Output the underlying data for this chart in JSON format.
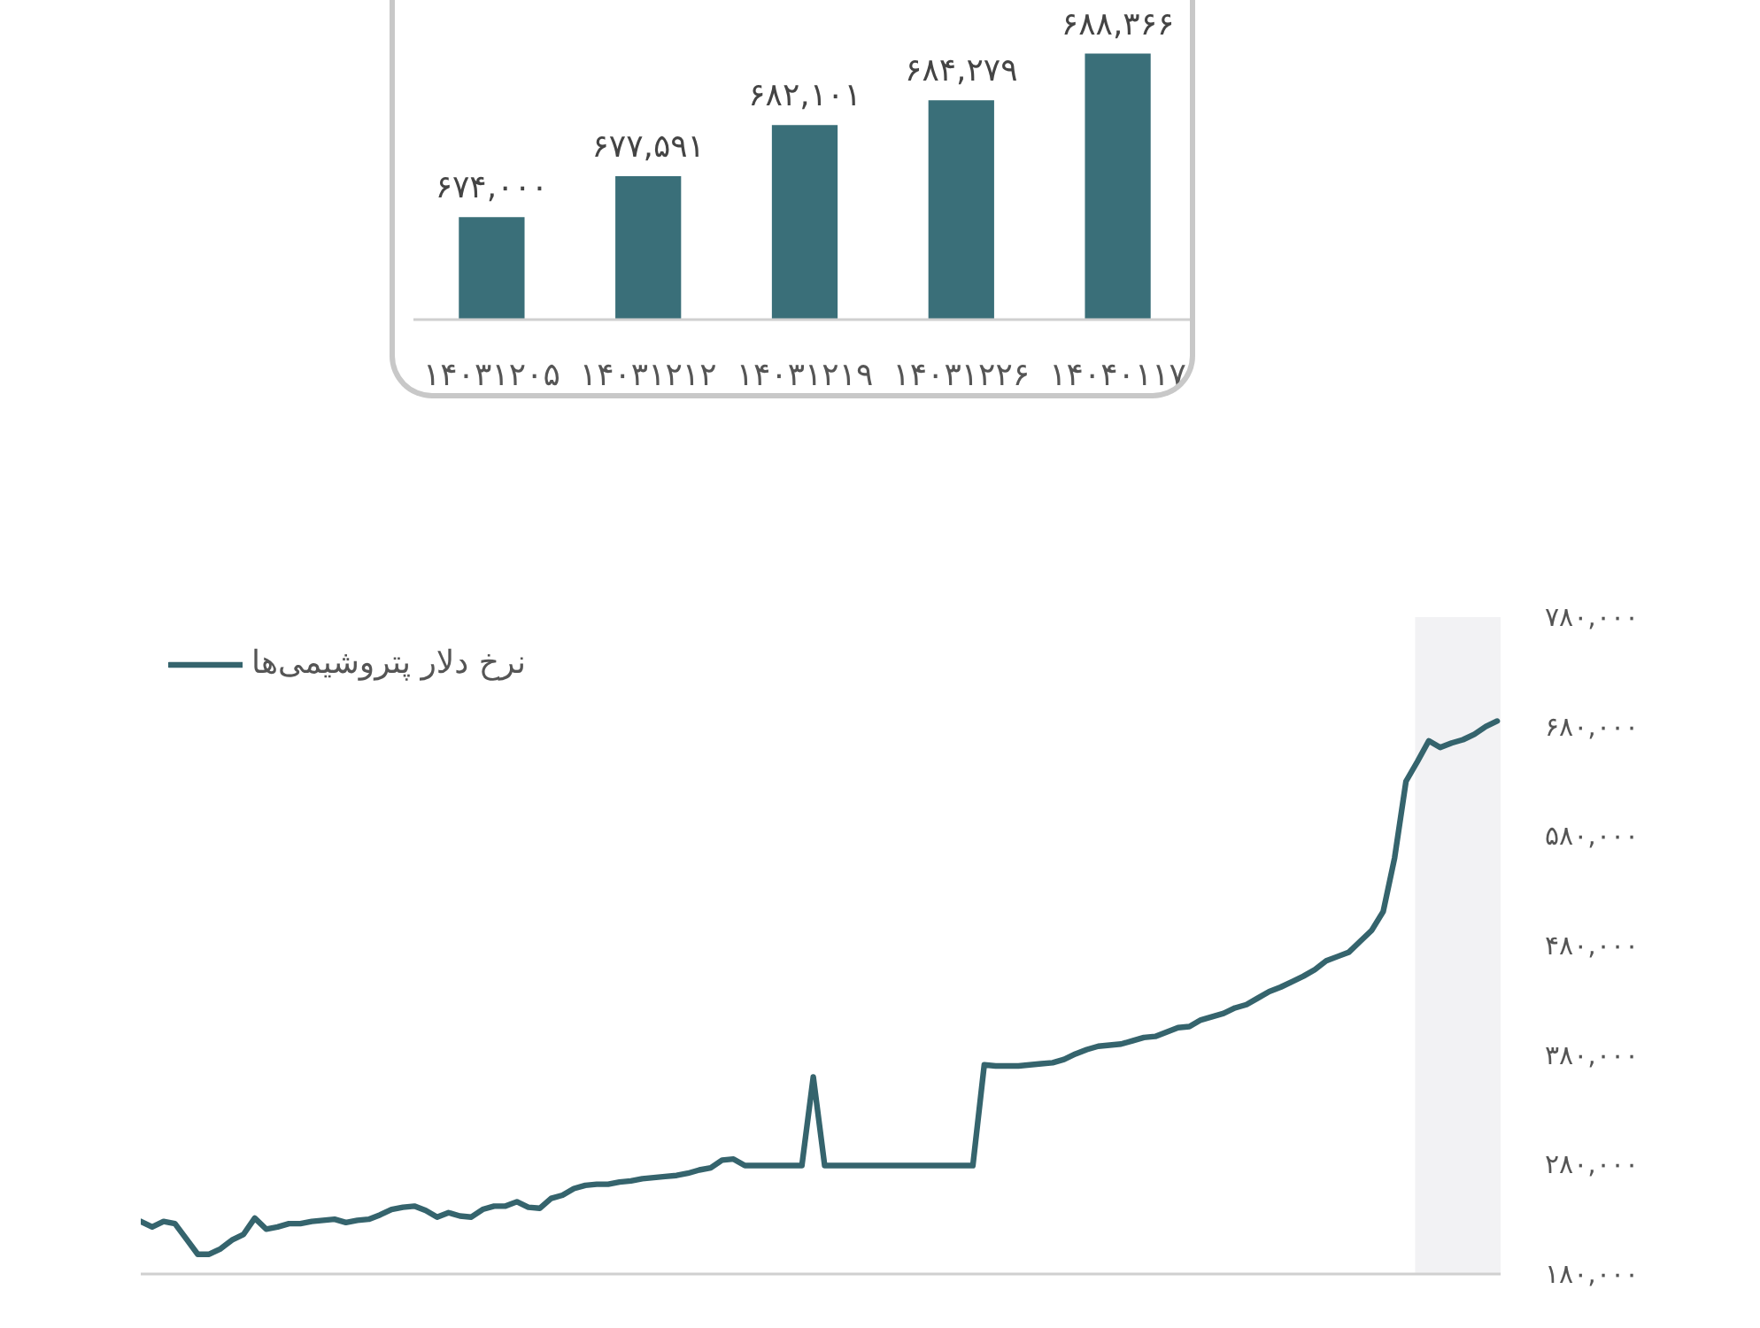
{
  "chart_data": [
    {
      "type": "bar",
      "categories": [
        "۱۴۰۳۱۲۰۵",
        "۱۴۰۳۱۲۱۲",
        "۱۴۰۳۱۲۱۹",
        "۱۴۰۳۱۲۲۶",
        "۱۴۰۴۰۱۱۷"
      ],
      "values": [
        674000,
        677591,
        682101,
        684279,
        688366
      ],
      "value_labels": [
        "۶۷۴,۰۰۰",
        "۶۷۷,۵۹۱",
        "۶۸۲,۱۰۱",
        "۶۸۴,۲۷۹",
        "۶۸۸,۳۶۶"
      ],
      "color": "#3a6f79",
      "ylim": [
        665000,
        693000
      ],
      "tick_labels": "x"
    },
    {
      "type": "line",
      "categories": [
        null,
        null,
        null,
        null,
        null,
        null,
        null,
        null,
        null,
        null,
        null,
        null,
        null,
        null,
        null,
        null,
        null,
        null,
        null,
        null,
        null,
        null,
        null,
        null,
        null,
        null,
        null,
        null,
        null,
        null,
        null,
        null,
        null,
        null,
        null,
        null,
        null,
        null,
        null,
        null,
        null,
        null,
        null,
        null,
        null,
        null,
        null,
        null,
        null,
        null,
        null,
        null,
        null,
        null,
        null,
        null,
        null,
        null,
        null,
        null,
        null,
        null,
        null,
        null,
        null,
        null,
        null,
        null,
        null,
        null,
        null,
        null,
        null,
        null,
        null,
        null,
        null,
        null,
        null,
        null,
        null,
        null,
        null,
        null,
        null,
        null,
        null,
        null,
        null,
        null,
        null,
        null,
        null,
        null,
        null,
        null,
        null,
        null,
        null,
        null,
        null,
        null,
        null,
        null,
        null,
        null,
        null,
        null,
        null,
        null,
        null,
        null,
        null,
        null,
        null,
        null,
        null,
        null,
        null,
        null
      ],
      "series": [
        {
          "name": "نرخ دلار پتروشیمی‌ها",
          "color": "#35646d",
          "values": [
            228000,
            223000,
            228000,
            226000,
            212000,
            198000,
            198000,
            203000,
            211000,
            216000,
            231000,
            221000,
            223000,
            226000,
            226000,
            228000,
            229000,
            230000,
            227000,
            229000,
            230000,
            234000,
            239000,
            241000,
            242000,
            238000,
            232000,
            236000,
            233000,
            232000,
            239000,
            242000,
            242000,
            246000,
            241000,
            240000,
            249000,
            252000,
            258000,
            261000,
            262000,
            262000,
            264000,
            265000,
            267000,
            268000,
            269000,
            270000,
            272000,
            275000,
            277000,
            284000,
            285000,
            279000,
            279000,
            279000,
            279000,
            279000,
            279000,
            360000,
            279000,
            279000,
            279000,
            279000,
            279000,
            279000,
            279000,
            279000,
            279000,
            279000,
            279000,
            279000,
            279000,
            279000,
            371000,
            370000,
            370000,
            370000,
            371000,
            372000,
            373000,
            376000,
            381000,
            385000,
            388000,
            389000,
            390000,
            393000,
            396000,
            397000,
            401000,
            405000,
            406000,
            412000,
            415000,
            418000,
            423000,
            426000,
            432000,
            438000,
            442000,
            447000,
            452000,
            458000,
            466000,
            470000,
            474000,
            484000,
            494000,
            511000,
            560000,
            630000,
            648000,
            667000,
            661000,
            665000,
            668000,
            673000,
            680000,
            685000
          ]
        }
      ],
      "ylim": [
        180000,
        780000
      ],
      "yticks": [
        {
          "value": 180000,
          "label": "۱۸۰,۰۰۰"
        },
        {
          "value": 280000,
          "label": "۲۸۰,۰۰۰"
        },
        {
          "value": 380000,
          "label": "۳۸۰,۰۰۰"
        },
        {
          "value": 480000,
          "label": "۴۸۰,۰۰۰"
        },
        {
          "value": 580000,
          "label": "۵۸۰,۰۰۰"
        },
        {
          "value": 680000,
          "label": "۶۸۰,۰۰۰"
        },
        {
          "value": 780000,
          "label": "۷۸۰,۰۰۰"
        }
      ],
      "legend": "top left"
    }
  ]
}
